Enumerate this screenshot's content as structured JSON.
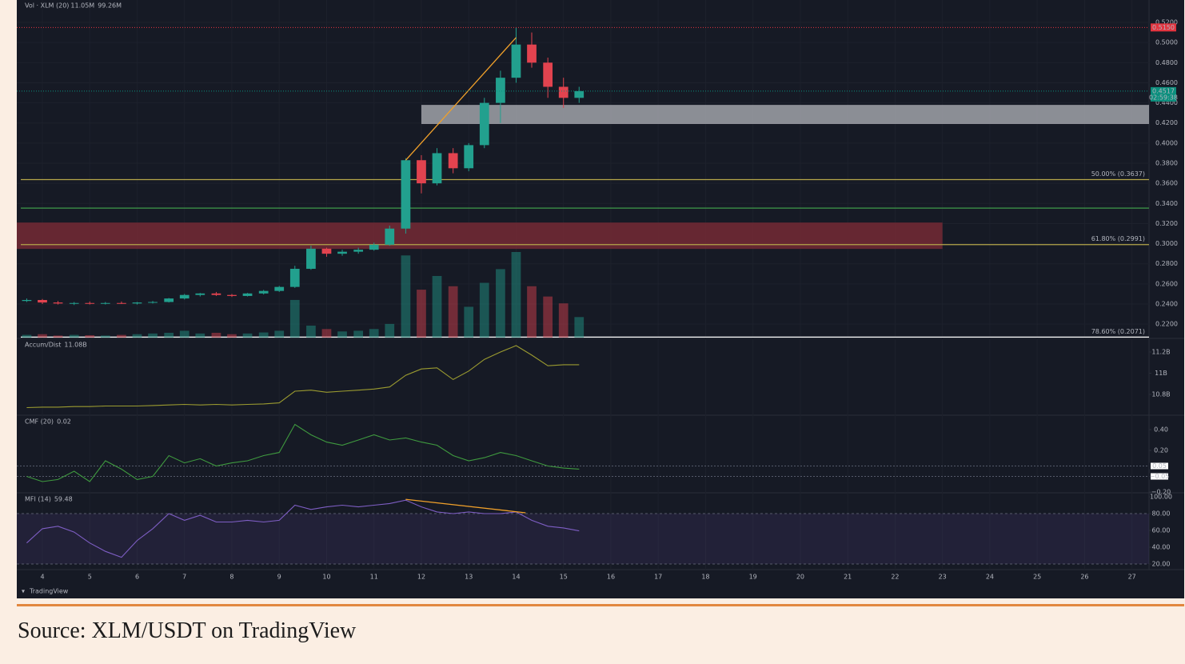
{
  "chart_data": {
    "type": "candlestick",
    "x": [
      3.67,
      4,
      4.33,
      4.67,
      5,
      5.33,
      5.67,
      6,
      6.33,
      6.67,
      7,
      7.33,
      7.67,
      8,
      8.33,
      8.67,
      9,
      9.33,
      9.67,
      10,
      10.33,
      10.67,
      11,
      11.33,
      11.67,
      12,
      12.33,
      12.67,
      13,
      13.33,
      13.67,
      14,
      14.33,
      14.67,
      15,
      15.33
    ],
    "xlim": [
      3.46,
      27.36
    ],
    "xticks": [
      4,
      5,
      6,
      7,
      8,
      9,
      10,
      11,
      12,
      13,
      14,
      15,
      16,
      17,
      18,
      19,
      20,
      21,
      22,
      23,
      24,
      25,
      26,
      27
    ],
    "ylim": [
      0.2066,
      0.5423
    ],
    "yticks": [
      {
        "value": 0.22,
        "label": "0.2200"
      },
      {
        "value": 0.24,
        "label": "0.2400"
      },
      {
        "value": 0.26,
        "label": "0.2600"
      },
      {
        "value": 0.28,
        "label": "0.2800"
      },
      {
        "value": 0.3,
        "label": "0.3000"
      },
      {
        "value": 0.32,
        "label": "0.3200"
      },
      {
        "value": 0.34,
        "label": "0.3400"
      },
      {
        "value": 0.36,
        "label": "0.3600"
      },
      {
        "value": 0.38,
        "label": "0.3800"
      },
      {
        "value": 0.4,
        "label": "0.4000"
      },
      {
        "value": 0.42,
        "label": "0.4200"
      },
      {
        "value": 0.44,
        "label": "0.4400"
      },
      {
        "value": 0.46,
        "label": "0.4600"
      },
      {
        "value": 0.48,
        "label": "0.4800"
      },
      {
        "value": 0.5,
        "label": "0.5000"
      },
      {
        "value": 0.52,
        "label": "0.5200"
      }
    ],
    "open": [
      0.243,
      0.244,
      0.2415,
      0.2405,
      0.241,
      0.2405,
      0.241,
      0.2405,
      0.2415,
      0.242,
      0.2455,
      0.249,
      0.2505,
      0.249,
      0.248,
      0.2505,
      0.253,
      0.257,
      0.275,
      0.295,
      0.29,
      0.292,
      0.294,
      0.299,
      0.315,
      0.383,
      0.36,
      0.39,
      0.375,
      0.398,
      0.44,
      0.465,
      0.498,
      0.48,
      0.456,
      0.445
    ],
    "high": [
      0.2455,
      0.245,
      0.243,
      0.242,
      0.2425,
      0.242,
      0.2425,
      0.242,
      0.243,
      0.246,
      0.25,
      0.251,
      0.252,
      0.25,
      0.251,
      0.254,
      0.258,
      0.278,
      0.298,
      0.296,
      0.294,
      0.296,
      0.301,
      0.318,
      0.385,
      0.388,
      0.395,
      0.395,
      0.4,
      0.445,
      0.472,
      0.515,
      0.51,
      0.485,
      0.465,
      0.456
    ],
    "low": [
      0.242,
      0.24,
      0.2395,
      0.239,
      0.2395,
      0.2395,
      0.24,
      0.2395,
      0.2405,
      0.2415,
      0.2445,
      0.2475,
      0.248,
      0.247,
      0.2475,
      0.2495,
      0.252,
      0.256,
      0.274,
      0.287,
      0.288,
      0.29,
      0.293,
      0.298,
      0.31,
      0.35,
      0.358,
      0.37,
      0.372,
      0.395,
      0.42,
      0.46,
      0.475,
      0.445,
      0.435,
      0.44
    ],
    "close": [
      0.244,
      0.2415,
      0.2405,
      0.241,
      0.2405,
      0.241,
      0.2405,
      0.2415,
      0.242,
      0.2455,
      0.249,
      0.2505,
      0.249,
      0.248,
      0.2505,
      0.253,
      0.257,
      0.275,
      0.295,
      0.29,
      0.292,
      0.294,
      0.299,
      0.315,
      0.383,
      0.36,
      0.39,
      0.375,
      0.398,
      0.44,
      0.465,
      0.498,
      0.48,
      0.456,
      0.445,
      0.4517
    ],
    "colors": {
      "up": "#22a08e",
      "down": "#e2434f"
    },
    "volume": {
      "name": "Vol · XLM (20)",
      "legend_values": [
        "11.05M",
        "99.26M"
      ],
      "values": [
        8,
        10,
        6,
        8,
        7,
        6,
        8,
        10,
        12,
        14,
        20,
        12,
        14,
        10,
        12,
        15,
        20,
        110,
        35,
        25,
        18,
        20,
        25,
        40,
        240,
        140,
        180,
        150,
        90,
        160,
        200,
        250,
        150,
        120,
        100,
        60
      ]
    },
    "zones": [
      {
        "x": [
          12,
          27.36
        ],
        "y": [
          0.419,
          0.438
        ],
        "color": "#a9abb1"
      },
      {
        "x": [
          3.46,
          23
        ],
        "y": [
          0.2948,
          0.321
        ],
        "color": "#7a2a36"
      }
    ],
    "levels": [
      {
        "label": "50.00% (0.3637)",
        "value": 0.3637,
        "color": "#b5a64a"
      },
      {
        "label": "61.80% (0.2991)",
        "value": 0.2991,
        "color": "#b5a64a"
      },
      {
        "label": "78.60% (0.2071)",
        "value": 0.2071,
        "color": "#ffffff"
      },
      {
        "value": 0.3354,
        "color": "#3f9a4a"
      }
    ],
    "price_marks": [
      {
        "value": 0.515,
        "label": "0.5150",
        "color": "#e2343f"
      },
      {
        "value": 0.4517,
        "label": "0.4517",
        "sublabel": "02:59:38",
        "color": "#0b8f7d"
      }
    ],
    "trendlines": [
      {
        "x": [
          11.67,
          14
        ],
        "y": [
          0.383,
          0.505
        ],
        "color": "#f0a02a"
      }
    ],
    "indicators": [
      {
        "type": "line",
        "name": "Accum/Dist",
        "last": "11.08B",
        "color": "#9b9b30",
        "ylim": [
          10.611,
          11.313
        ],
        "yticks": [
          {
            "value": 10.8,
            "label": "10.8B"
          },
          {
            "value": 11,
            "label": "11B"
          },
          {
            "value": 11.2,
            "label": "11.2B"
          }
        ],
        "values": [
          10.675,
          10.68,
          10.68,
          10.685,
          10.685,
          10.69,
          10.69,
          10.69,
          10.695,
          10.7,
          10.705,
          10.7,
          10.705,
          10.7,
          10.705,
          10.71,
          10.72,
          10.83,
          10.84,
          10.82,
          10.83,
          10.84,
          10.85,
          10.87,
          10.98,
          11.04,
          11.05,
          10.94,
          11.02,
          11.13,
          11.2,
          11.26,
          11.17,
          11.07,
          11.08,
          11.08
        ]
      },
      {
        "type": "line",
        "name": "CMF (20)",
        "last": "0.02",
        "color": "#3f9a3f",
        "ylim": [
          -0.2,
          0.523
        ],
        "yticks": [
          {
            "value": 0.4,
            "label": "0.40"
          },
          {
            "value": 0.2,
            "label": "0.20"
          },
          {
            "value": -0.2,
            "label": "−0.20"
          }
        ],
        "bands": [
          {
            "value": 0.05,
            "label": "0.05"
          },
          {
            "value": -0.05,
            "label": "−0.05"
          }
        ],
        "values": [
          -0.05,
          -0.1,
          -0.08,
          0.0,
          -0.1,
          0.1,
          0.02,
          -0.08,
          -0.05,
          0.15,
          0.08,
          0.12,
          0.05,
          0.08,
          0.1,
          0.15,
          0.18,
          0.45,
          0.35,
          0.28,
          0.25,
          0.3,
          0.35,
          0.3,
          0.32,
          0.28,
          0.25,
          0.15,
          0.1,
          0.13,
          0.18,
          0.15,
          0.1,
          0.05,
          0.03,
          0.02
        ]
      },
      {
        "type": "line",
        "name": "MFI (14)",
        "last": "59.48",
        "color": "#7e5ec4",
        "ylim": [
          13.3,
          102.9
        ],
        "yticks": [
          {
            "value": 20,
            "label": "20.00"
          },
          {
            "value": 40,
            "label": "40.00"
          },
          {
            "value": 60,
            "label": "60.00"
          },
          {
            "value": 80,
            "label": "80.00"
          },
          {
            "value": 100,
            "label": "100.00"
          }
        ],
        "band": [
          20,
          80
        ],
        "trendlines": [
          {
            "x": [
              11.67,
              14.2
            ],
            "y": [
              97,
              81
            ],
            "color": "#f0a02a"
          }
        ],
        "values": [
          45,
          62,
          65,
          58,
          45,
          35,
          28,
          48,
          62,
          80,
          72,
          78,
          70,
          70,
          72,
          70,
          72,
          90,
          85,
          88,
          90,
          88,
          90,
          92,
          96,
          88,
          82,
          80,
          82,
          80,
          80,
          82,
          72,
          65,
          63,
          59.48
        ]
      }
    ],
    "branding": "TradingView"
  },
  "caption": "Source: XLM/USDT on TradingView"
}
